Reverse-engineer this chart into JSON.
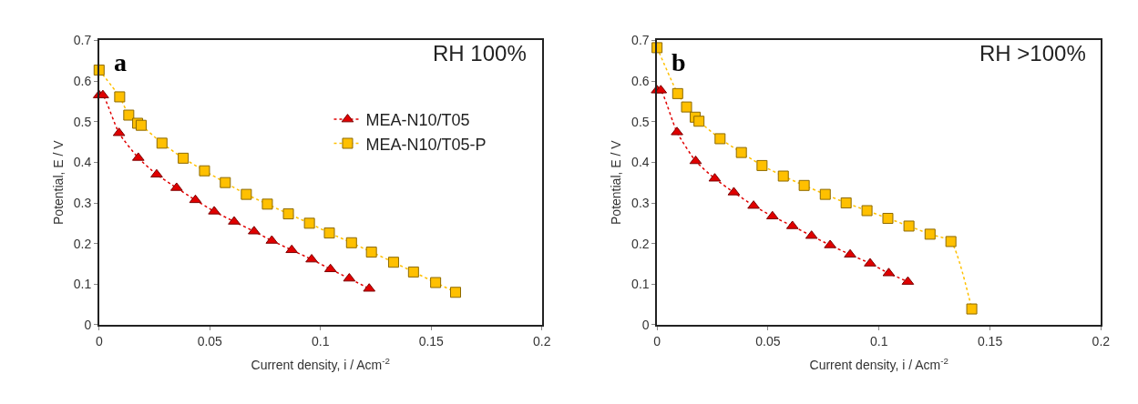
{
  "chart_data": [
    {
      "type": "line",
      "xlabel": "Current density, i / Acm$^{-2}$",
      "ylabel": "Potential, E / V",
      "annotations": [
        "a",
        "RH 100%"
      ],
      "xlim": [
        0,
        0.2
      ],
      "xticks": [
        0,
        0.05,
        0.1,
        0.15,
        0.2
      ],
      "ylim": [
        0,
        0.7
      ],
      "yticks": [
        0,
        0.1,
        0.2,
        0.3,
        0.4,
        0.5,
        0.6,
        0.7
      ],
      "legend": "right",
      "line_style": "dotted",
      "series": [
        {
          "name": "MEA-N10/T05",
          "color": "#e00000",
          "marker": "triangle",
          "x": [
            0,
            0.0017,
            0.009,
            0.0177,
            0.026,
            0.035,
            0.0435,
            0.052,
            0.061,
            0.07,
            0.078,
            0.087,
            0.096,
            0.1045,
            0.113,
            0.122
          ],
          "values": [
            0.565,
            0.565,
            0.472,
            0.411,
            0.37,
            0.337,
            0.307,
            0.279,
            0.254,
            0.23,
            0.207,
            0.184,
            0.161,
            0.137,
            0.114,
            0.089
          ]
        },
        {
          "name": "MEA-N10/T05-P",
          "color": "#ffc000",
          "marker": "square",
          "x": [
            0,
            0.0093,
            0.0134,
            0.0174,
            0.019,
            0.0284,
            0.038,
            0.0476,
            0.057,
            0.0665,
            0.076,
            0.0855,
            0.095,
            0.104,
            0.114,
            0.123,
            0.133,
            0.142,
            0.152,
            0.161
          ],
          "values": [
            0.627,
            0.561,
            0.516,
            0.496,
            0.491,
            0.447,
            0.41,
            0.379,
            0.35,
            0.321,
            0.297,
            0.273,
            0.25,
            0.226,
            0.202,
            0.179,
            0.154,
            0.13,
            0.104,
            0.08
          ]
        }
      ]
    },
    {
      "type": "line",
      "xlabel": "Current density, i / Acm$^{-2}$",
      "ylabel": "Potential, E / V",
      "annotations": [
        "b",
        "RH >100%"
      ],
      "xlim": [
        0,
        0.2
      ],
      "xticks": [
        0,
        0.05,
        0.1,
        0.15,
        0.2
      ],
      "ylim": [
        0,
        0.7
      ],
      "yticks": [
        0,
        0.1,
        0.2,
        0.3,
        0.4,
        0.5,
        0.6,
        0.7
      ],
      "legend": false,
      "line_style": "dotted",
      "series": [
        {
          "color": "#e00000",
          "marker": "triangle",
          "x": [
            0,
            0.0017,
            0.009,
            0.0174,
            0.026,
            0.0346,
            0.0435,
            0.052,
            0.061,
            0.0696,
            0.078,
            0.087,
            0.096,
            0.1044,
            0.113
          ],
          "values": [
            0.577,
            0.577,
            0.474,
            0.403,
            0.36,
            0.326,
            0.293,
            0.267,
            0.243,
            0.219,
            0.196,
            0.173,
            0.151,
            0.127,
            0.106
          ]
        },
        {
          "color": "#ffc000",
          "marker": "square",
          "x": [
            0,
            0.0093,
            0.0133,
            0.0172,
            0.0189,
            0.0284,
            0.038,
            0.0473,
            0.0569,
            0.0663,
            0.0758,
            0.0852,
            0.0946,
            0.104,
            0.1135,
            0.123,
            0.1324,
            0.1418
          ],
          "values": [
            0.682,
            0.569,
            0.536,
            0.511,
            0.501,
            0.458,
            0.424,
            0.392,
            0.366,
            0.343,
            0.321,
            0.3,
            0.281,
            0.262,
            0.243,
            0.223,
            0.205,
            0.039
          ]
        }
      ]
    }
  ]
}
